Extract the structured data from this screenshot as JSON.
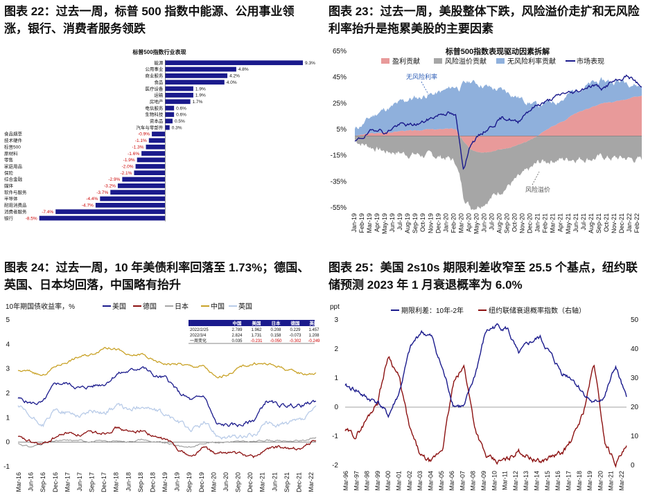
{
  "panels": {
    "p22": {
      "title": "图表 22：过去一周，标普 500 指数中能源、公用事业领涨，银行、消费者服务领跌"
    },
    "p23": {
      "title": "图表 23：过去一周，美股整体下跌，风险溢价走扩和无风险利率抬升是拖累美股的主要因素"
    },
    "p24": {
      "title": "图表 24：过去一周，10 年美债利率回落至 1.73%；德国、英国、日本均回落，中国略有抬升"
    },
    "p25": {
      "title": "图表 25：美国 2s10s 期限利差收窄至 25.5 个基点，纽约联储预测 2023 年 1 月衰退概率为 6.0%"
    }
  },
  "colors": {
    "navy": "#1a1a8c",
    "red": "#cc0000",
    "darkred": "#8b1010",
    "gray": "#a6a6a6",
    "gold": "#c9a227",
    "lightblue": "#b8cbe8",
    "salmon": "#e89a9a",
    "midblue": "#8fb0dc"
  },
  "chart_data": [
    {
      "id": "c22",
      "type": "bar",
      "orientation": "horizontal",
      "title": "标普500指数行业表现",
      "categories": [
        "能源",
        "公用事业",
        "商业服务",
        "食品",
        "医疗设备",
        "运输",
        "房地产",
        "电信服务",
        "生物科技",
        "资本品",
        "汽车与零部件",
        "食品烟草",
        "技术硬件",
        "标普500",
        "原材料",
        "零售",
        "家庭用品",
        "保险",
        "综合金融",
        "媒体",
        "软件与服务",
        "半导体",
        "耐用消费品",
        "消费者服务",
        "银行"
      ],
      "values": [
        9.3,
        4.8,
        4.2,
        4.0,
        1.9,
        1.9,
        1.7,
        0.6,
        0.6,
        0.5,
        0.3,
        -0.9,
        -1.1,
        -1.3,
        -1.6,
        -1.9,
        -2.0,
        -2.1,
        -2.9,
        -3.2,
        -3.7,
        -4.4,
        -4.7,
        -7.4,
        -8.5
      ],
      "labels": [
        "9.3%",
        "4.8%",
        "4.2%",
        "4.0%",
        "1.9%",
        "1.9%",
        "1.7%",
        "0.6%",
        "0.6%",
        "0.5%",
        "0.3%",
        "-0.9%",
        "-1.1%",
        "-1.3%",
        "-1.6%",
        "-1.9%",
        "-2.0%",
        "-2.1%",
        "-2.9%",
        "-3.2%",
        "-3.7%",
        "-4.4%",
        "-4.7%",
        "-7.4%",
        "-8.5%"
      ],
      "xlim": [
        -9,
        10
      ]
    },
    {
      "id": "c23",
      "type": "area",
      "title": "标普500指数表现驱动因素拆解",
      "legend": [
        "盈利贡献",
        "风险溢价贡献",
        "无风险利率贡献",
        "市场表现"
      ],
      "annotations": [
        "无风险利率",
        "风险溢价"
      ],
      "ylim": [
        -55,
        65
      ],
      "yticks": [
        "65%",
        "45%",
        "25%",
        "5%",
        "-15%",
        "-35%",
        "-55%"
      ],
      "ytick_values": [
        65,
        45,
        25,
        5,
        -15,
        -35,
        -55
      ],
      "x_labels": [
        "Jan-19",
        "Feb-19",
        "Mar-19",
        "Apr-19",
        "May-19",
        "Jun-19",
        "Jul-19",
        "Aug-19",
        "Sep-19",
        "Oct-19",
        "Nov-19",
        "Dec-19",
        "Jan-20",
        "Feb-20",
        "Mar-20",
        "Apr-20",
        "May-20",
        "Jun-20",
        "Jul-20",
        "Aug-20",
        "Sep-20",
        "Oct-20",
        "Nov-20",
        "Dec-20",
        "Jan-21",
        "Feb-21",
        "Mar-21",
        "Apr-21",
        "May-21",
        "Jun-21",
        "Jul-21",
        "Aug-21",
        "Sep-21",
        "Oct-21",
        "Nov-21",
        "Dec-21",
        "Jan-22",
        "Feb-22"
      ],
      "series": [
        {
          "name": "盈利贡献",
          "values": [
            0,
            1,
            2,
            2,
            3,
            3,
            4,
            4,
            4,
            5,
            5,
            5,
            6,
            5,
            -4,
            -11,
            -12,
            -12,
            -11,
            -10,
            -9,
            -7,
            -5,
            -2,
            2,
            6,
            9,
            12,
            16,
            19,
            21,
            23,
            25,
            26,
            27,
            28,
            30,
            31
          ]
        },
        {
          "name": "风险溢价贡献",
          "values": [
            -3,
            -6,
            -8,
            -10,
            -12,
            -12,
            -13,
            -14,
            -14,
            -15,
            -15,
            -16,
            -17,
            -20,
            -42,
            -44,
            -40,
            -37,
            -34,
            -31,
            -28,
            -26,
            -24,
            -22,
            -20,
            -19,
            -18,
            -18,
            -17,
            -17,
            -17,
            -17,
            -16,
            -17,
            -17,
            -17,
            -18,
            -18
          ]
        },
        {
          "name": "无风险利率贡献",
          "values": [
            5,
            8,
            12,
            16,
            18,
            20,
            22,
            24,
            25,
            26,
            27,
            28,
            30,
            33,
            40,
            42,
            40,
            38,
            36,
            35,
            33,
            30,
            27,
            25,
            22,
            20,
            18,
            17,
            18,
            18,
            18,
            18,
            17,
            16,
            15,
            14,
            10,
            7
          ]
        },
        {
          "name": "市场表现",
          "values": [
            -5,
            -1,
            3,
            6,
            2,
            7,
            9,
            8,
            9,
            11,
            14,
            17,
            18,
            15,
            -25,
            -5,
            0,
            5,
            9,
            14,
            13,
            10,
            18,
            22,
            25,
            27,
            30,
            33,
            33,
            35,
            38,
            39,
            36,
            41,
            42,
            46,
            43,
            37
          ]
        }
      ]
    },
    {
      "id": "c24",
      "type": "line",
      "title": "10年期国债收益率，%",
      "legend": [
        "美国",
        "德国",
        "日本",
        "中国",
        "英国"
      ],
      "ylim": [
        -1,
        5
      ],
      "yticks": [
        "5",
        "4",
        "3",
        "2",
        "1",
        "0",
        "-1"
      ],
      "ytick_values": [
        5,
        4,
        3,
        2,
        1,
        0,
        -1
      ],
      "x_labels": [
        "Mar-16",
        "Jun-16",
        "Sep-16",
        "Dec-16",
        "Mar-17",
        "Jun-17",
        "Sep-17",
        "Dec-17",
        "Mar-18",
        "Jun-18",
        "Sep-18",
        "Dec-18",
        "Mar-19",
        "Jun-19",
        "Sep-19",
        "Dec-19",
        "Mar-20",
        "Jun-20",
        "Sep-20",
        "Dec-20",
        "Mar-21",
        "Jun-21",
        "Sep-21",
        "Dec-21",
        "Mar-22"
      ],
      "series": [
        {
          "name": "美国",
          "values": [
            1.8,
            1.6,
            1.6,
            2.4,
            2.4,
            2.2,
            2.3,
            2.4,
            2.8,
            2.9,
            3.1,
            2.7,
            2.6,
            2.0,
            1.7,
            1.9,
            0.7,
            0.7,
            0.7,
            0.9,
            1.7,
            1.5,
            1.5,
            1.5,
            1.7
          ]
        },
        {
          "name": "德国",
          "values": [
            0.2,
            0.0,
            -0.1,
            0.2,
            0.4,
            0.3,
            0.4,
            0.4,
            0.6,
            0.4,
            0.5,
            0.2,
            0.1,
            -0.3,
            -0.6,
            -0.2,
            -0.5,
            -0.4,
            -0.5,
            -0.6,
            -0.3,
            -0.2,
            -0.3,
            -0.2,
            0.1
          ]
        },
        {
          "name": "日本",
          "values": [
            -0.05,
            -0.2,
            -0.05,
            0.05,
            0.07,
            0.07,
            0.03,
            0.05,
            0.04,
            0.03,
            0.12,
            0.0,
            -0.05,
            -0.15,
            -0.2,
            -0.02,
            0.0,
            0.02,
            0.02,
            0.02,
            0.1,
            0.05,
            0.05,
            0.07,
            0.2
          ]
        },
        {
          "name": "中国",
          "values": [
            2.9,
            2.9,
            2.7,
            3.1,
            3.3,
            3.5,
            3.6,
            3.9,
            3.8,
            3.5,
            3.6,
            3.3,
            3.2,
            3.2,
            3.1,
            3.1,
            2.6,
            2.8,
            3.1,
            3.2,
            3.2,
            3.1,
            2.9,
            2.8,
            2.8
          ]
        },
        {
          "name": "英国",
          "values": [
            1.5,
            1.0,
            0.7,
            1.3,
            1.2,
            1.1,
            1.3,
            1.2,
            1.5,
            1.3,
            1.5,
            1.3,
            1.1,
            0.8,
            0.5,
            0.8,
            0.3,
            0.2,
            0.2,
            0.3,
            0.8,
            0.7,
            0.8,
            0.9,
            1.4
          ]
        }
      ],
      "table": {
        "headers": [
          "",
          "中国",
          "美国",
          "日本",
          "德国",
          "英国"
        ],
        "rows": [
          [
            "2022/2/25",
            "2.789",
            "1.962",
            "0.208",
            "0.229",
            "1.457"
          ],
          [
            "2022/3/4",
            "2.824",
            "1.731",
            "0.158",
            "-0.073",
            "1.208"
          ],
          [
            "一周变化",
            "0.035",
            "-0.231",
            "-0.050",
            "-0.302",
            "-0.249"
          ]
        ]
      }
    },
    {
      "id": "c25",
      "type": "line",
      "legend": [
        "期限利差：10年-2年",
        "纽约联储衰退概率指数（右轴）"
      ],
      "yunit": "ppt",
      "ylim": [
        -2,
        3
      ],
      "yticks": [
        "3",
        "2",
        "1",
        "0",
        "-1",
        "-2"
      ],
      "ytick_values": [
        3,
        2,
        1,
        0,
        -1,
        -2
      ],
      "y2lim": [
        0,
        50
      ],
      "y2ticks": [
        "50",
        "40",
        "30",
        "20",
        "10",
        "0"
      ],
      "y2tick_values": [
        50,
        40,
        30,
        20,
        10,
        0
      ],
      "x_labels": [
        "Mar-96",
        "Mar-97",
        "Mar-98",
        "Mar-99",
        "Mar-00",
        "Mar-01",
        "Mar-02",
        "Mar-03",
        "Mar-04",
        "Mar-05",
        "Mar-06",
        "Mar-07",
        "Mar-08",
        "Mar-09",
        "Mar-10",
        "Mar-11",
        "Mar-12",
        "Mar-13",
        "Mar-14",
        "Mar-15",
        "Mar-16",
        "Mar-17",
        "Mar-18",
        "Mar-19",
        "Mar-20",
        "Mar-21",
        "Mar-22"
      ],
      "series": [
        {
          "name": "期限利差：10年-2年",
          "values": [
            0.7,
            0.6,
            0.3,
            0.2,
            -0.3,
            0.5,
            2.0,
            2.6,
            2.4,
            1.3,
            0.1,
            0.0,
            1.1,
            2.6,
            2.8,
            2.7,
            1.8,
            2.2,
            2.4,
            1.8,
            1.2,
            1.0,
            0.5,
            0.1,
            0.4,
            1.4,
            0.26
          ]
        },
        {
          "name": "纽约联储衰退概率指数（右轴）",
          "values": [
            12,
            10,
            16,
            22,
            38,
            30,
            12,
            3,
            1,
            6,
            28,
            34,
            13,
            3,
            1,
            2,
            5,
            3,
            1,
            3,
            4,
            9,
            18,
            35,
            8,
            1,
            6.0
          ]
        }
      ]
    }
  ]
}
